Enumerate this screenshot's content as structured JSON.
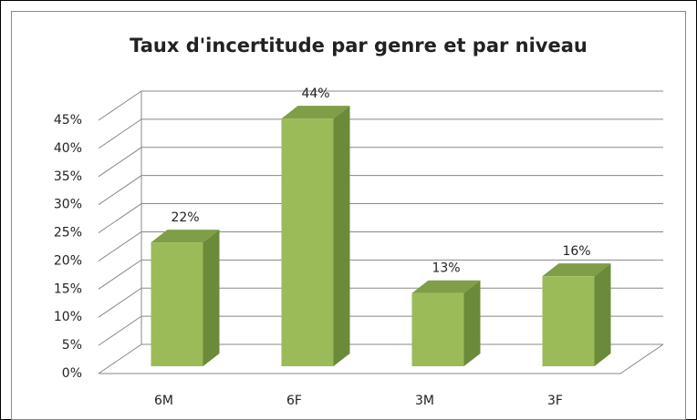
{
  "chart_data": {
    "type": "bar3d",
    "title": "Taux d'incertitude par genre et par niveau",
    "categories": [
      "6M",
      "6F",
      "3M",
      "3F"
    ],
    "values": [
      22,
      44,
      13,
      16
    ],
    "value_labels": [
      "22%",
      "44%",
      "13%",
      "16%"
    ],
    "color": "#9bbb59",
    "ylim": [
      0,
      45
    ],
    "yticks": [
      {
        "value": 0,
        "label": "0%"
      },
      {
        "value": 5,
        "label": "5%"
      },
      {
        "value": 10,
        "label": "10%"
      },
      {
        "value": 15,
        "label": "15%"
      },
      {
        "value": 20,
        "label": "20%"
      },
      {
        "value": 25,
        "label": "25%"
      },
      {
        "value": 30,
        "label": "30%"
      },
      {
        "value": 35,
        "label": "35%"
      },
      {
        "value": 40,
        "label": "40%"
      },
      {
        "value": 45,
        "label": "45%"
      }
    ],
    "grid": true
  }
}
